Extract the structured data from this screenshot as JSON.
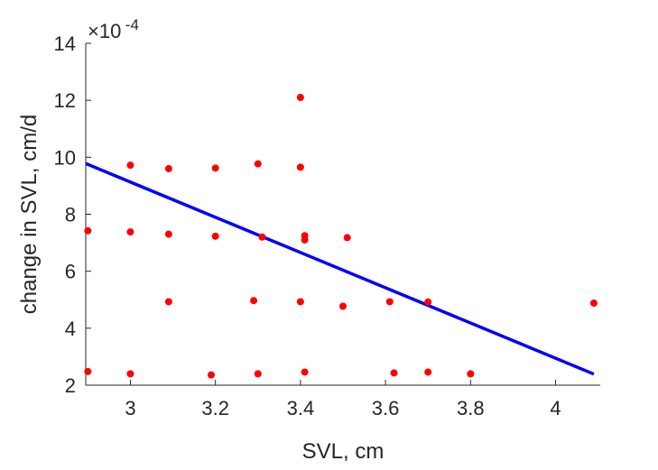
{
  "chart_data": {
    "type": "scatter",
    "title": "",
    "xlabel": "SVL, cm",
    "ylabel": "change in SVL, cm/d",
    "xlim": [
      2.895,
      4.105
    ],
    "ylim": [
      2,
      14
    ],
    "xticks": [
      3,
      3.2,
      3.4,
      3.6,
      3.8,
      4
    ],
    "xtick_labels": [
      "3",
      "3.2",
      "3.4",
      "3.6",
      "3.8",
      "4"
    ],
    "yticks": [
      2,
      4,
      6,
      8,
      10,
      12,
      14
    ],
    "ytick_labels": [
      "2",
      "4",
      "6",
      "8",
      "10",
      "12",
      "14"
    ],
    "y_multiplier": {
      "base": "×10",
      "exponent": "-4"
    },
    "grid": false,
    "point_color": "#ff0000",
    "line_color": "#0000ff",
    "points": [
      {
        "x": 2.9,
        "y": 7.42
      },
      {
        "x": 2.9,
        "y": 2.48
      },
      {
        "x": 3.0,
        "y": 9.72
      },
      {
        "x": 3.0,
        "y": 7.38
      },
      {
        "x": 3.0,
        "y": 2.4
      },
      {
        "x": 3.09,
        "y": 9.6
      },
      {
        "x": 3.09,
        "y": 7.3
      },
      {
        "x": 3.09,
        "y": 4.93
      },
      {
        "x": 3.19,
        "y": 2.36
      },
      {
        "x": 3.2,
        "y": 9.62
      },
      {
        "x": 3.2,
        "y": 7.23
      },
      {
        "x": 3.29,
        "y": 4.97
      },
      {
        "x": 3.3,
        "y": 9.77
      },
      {
        "x": 3.3,
        "y": 2.4
      },
      {
        "x": 3.31,
        "y": 7.2
      },
      {
        "x": 3.4,
        "y": 12.1
      },
      {
        "x": 3.4,
        "y": 9.65
      },
      {
        "x": 3.4,
        "y": 4.93
      },
      {
        "x": 3.41,
        "y": 7.25
      },
      {
        "x": 3.41,
        "y": 7.1
      },
      {
        "x": 3.41,
        "y": 2.46
      },
      {
        "x": 3.5,
        "y": 4.77
      },
      {
        "x": 3.51,
        "y": 7.18
      },
      {
        "x": 3.61,
        "y": 4.93
      },
      {
        "x": 3.62,
        "y": 2.43
      },
      {
        "x": 3.7,
        "y": 4.92
      },
      {
        "x": 3.7,
        "y": 2.46
      },
      {
        "x": 3.8,
        "y": 2.4
      },
      {
        "x": 4.09,
        "y": 4.88
      }
    ],
    "fit_line": {
      "x": [
        2.895,
        4.09
      ],
      "y": [
        9.78,
        2.39
      ]
    }
  }
}
